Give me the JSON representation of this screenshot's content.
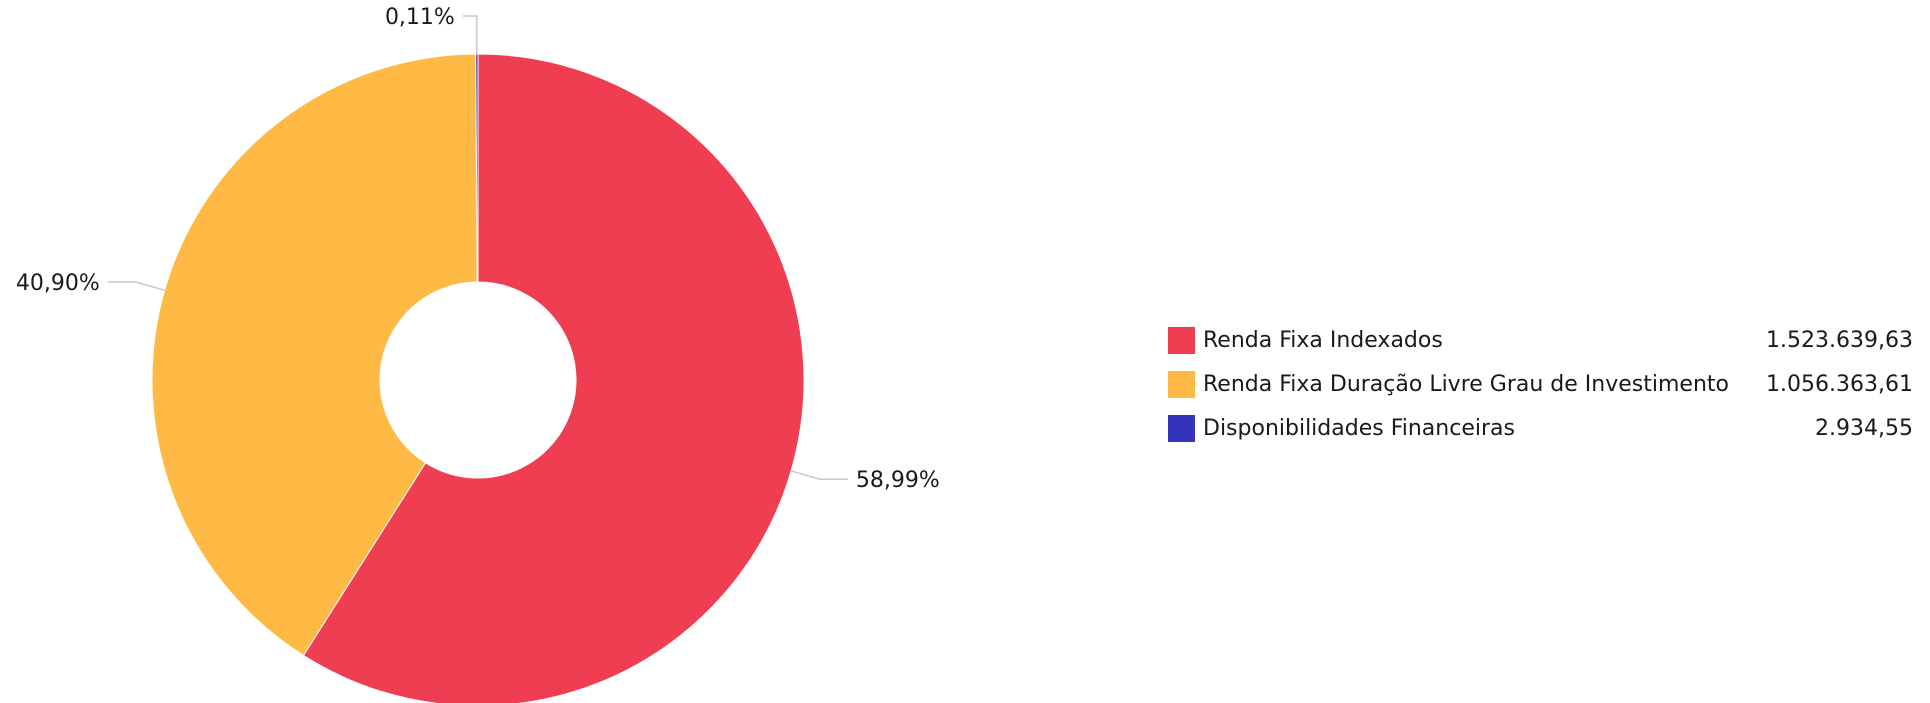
{
  "chart_data": {
    "type": "pie",
    "variant": "donut",
    "legend_position": "right",
    "slices": [
      {
        "label": "Renda Fixa Indexados",
        "value": 1523639.63,
        "value_text": "1.523.639,63",
        "percent": 58.99,
        "percent_text": "58,99%",
        "color": "#ef3d52"
      },
      {
        "label": "Renda Fixa Duração Livre Grau de Investimento",
        "value": 1056363.61,
        "value_text": "1.056.363,61",
        "percent": 40.9,
        "percent_text": "40,90%",
        "color": "#ffba45"
      },
      {
        "label": "Disponibilidades Financeiras",
        "value": 2934.55,
        "value_text": "2.934,55",
        "percent": 0.11,
        "percent_text": "0,11%",
        "color": "#3333bb"
      }
    ]
  }
}
